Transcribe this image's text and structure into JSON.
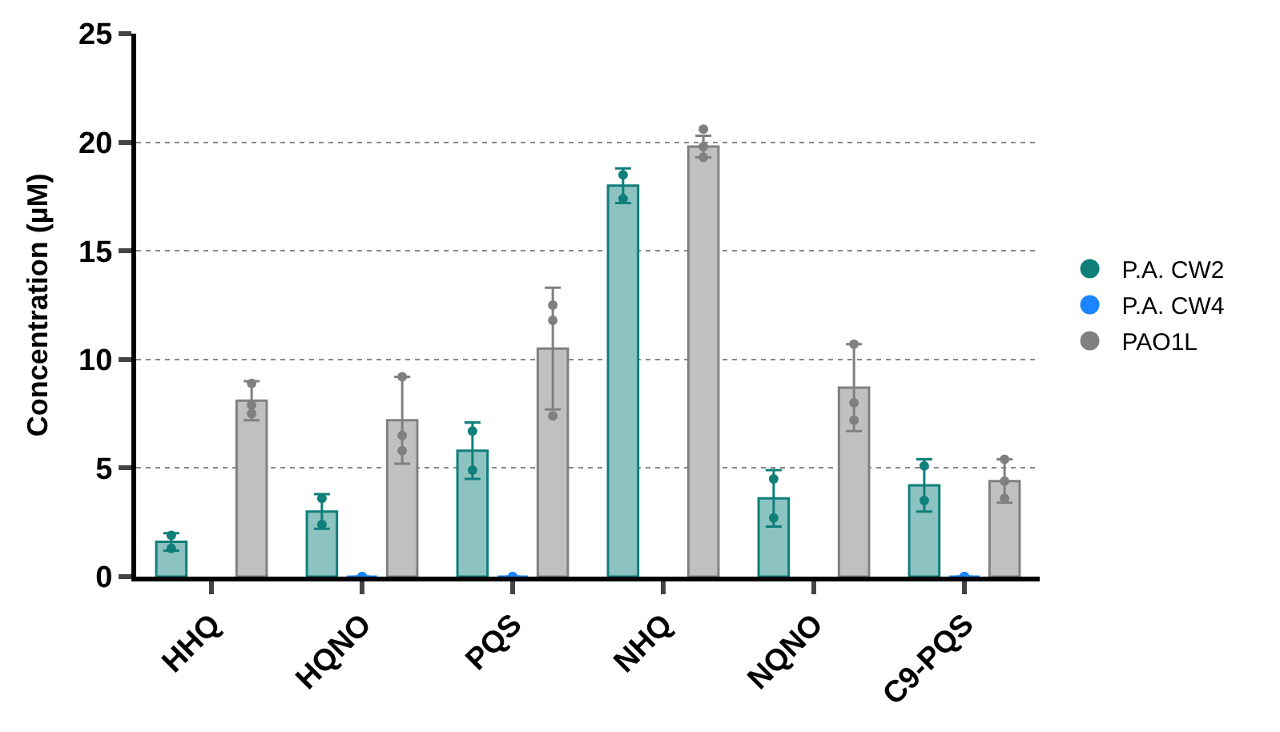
{
  "chart_data": {
    "type": "bar",
    "ylabel": "Concentration (µM)",
    "categories": [
      "HHQ",
      "HQNO",
      "PQS",
      "NHQ",
      "NQNO",
      "C9-PQS"
    ],
    "ylim": [
      0,
      25
    ],
    "yticks": [
      0,
      5,
      10,
      15,
      20,
      25
    ],
    "grid": "y",
    "legend": "right",
    "marker": "circle",
    "series": [
      {
        "color": "#8cc2c0",
        "values": [
          1.6,
          3.0,
          5.8,
          18.0,
          3.6,
          4.2
        ],
        "errors": [
          0.4,
          0.8,
          1.3,
          0.8,
          1.3,
          1.2
        ]
      },
      {
        "color": "#1a85ff",
        "values": [
          null,
          0,
          0,
          null,
          null,
          0
        ],
        "errors": [
          null,
          null,
          null,
          null,
          null,
          null
        ]
      },
      {
        "color": "#c0c0c0",
        "values": [
          8.1,
          7.2,
          10.5,
          19.8,
          8.7,
          4.4
        ],
        "errors": [
          0.9,
          2.0,
          2.8,
          0.5,
          2.0,
          1.0
        ]
      },
      {
        "type": "scatter",
        "name": "P.A. CW2",
        "color": "#0f7f7a",
        "x": [
          "HHQ",
          "HHQ",
          "HQNO",
          "HQNO",
          "PQS",
          "PQS",
          "NHQ",
          "NHQ",
          "NQNO",
          "NQNO",
          "C9-PQS",
          "C9-PQS"
        ],
        "values": [
          1.9,
          1.3,
          3.6,
          2.4,
          6.7,
          4.9,
          18.5,
          17.4,
          4.5,
          2.7,
          5.1,
          3.5
        ]
      },
      {
        "type": "scatter",
        "name": "P.A. CW4",
        "color": "#1a85ff",
        "x": [
          "HQNO",
          "HQNO",
          "HQNO",
          "PQS",
          "PQS",
          "PQS",
          "C9-PQS",
          "C9-PQS",
          "C9-PQS"
        ],
        "values": [
          0,
          0,
          0,
          0,
          0,
          0,
          0,
          0,
          0
        ]
      },
      {
        "type": "scatter",
        "name": "PAO1L",
        "color": "#808080",
        "x": [
          "HHQ",
          "HHQ",
          "HHQ",
          "HQNO",
          "HQNO",
          "HQNO",
          "PQS",
          "PQS",
          "PQS",
          "NHQ",
          "NHQ",
          "NHQ",
          "NQNO",
          "NQNO",
          "NQNO",
          "C9-PQS",
          "C9-PQS",
          "C9-PQS"
        ],
        "values": [
          8.9,
          7.9,
          7.5,
          9.2,
          6.5,
          5.8,
          12.5,
          11.8,
          7.4,
          20.6,
          19.8,
          19.3,
          10.7,
          8.0,
          7.2,
          5.4,
          4.4,
          3.6
        ]
      }
    ]
  }
}
